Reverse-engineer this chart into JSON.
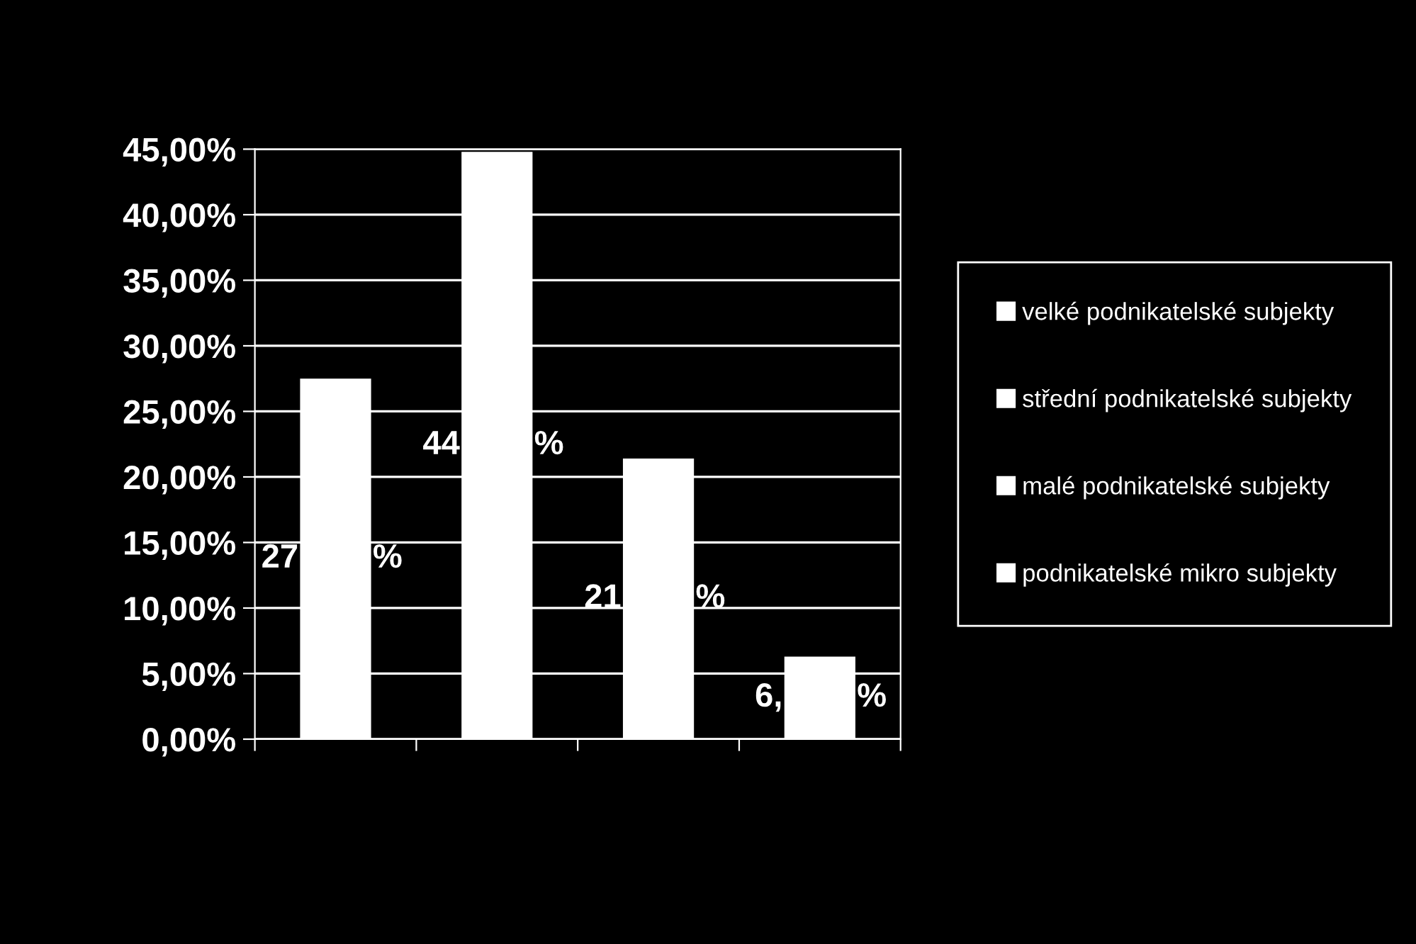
{
  "chart_data": {
    "type": "bar",
    "categories": [
      null,
      null,
      null,
      null
    ],
    "series": [
      {
        "name": "velké podnikatelské subjekty",
        "color": "#ffffff",
        "values": [
          27.5,
          null,
          null,
          null
        ]
      },
      {
        "name": "střední podnikatelské subjekty",
        "color": "#ffffff",
        "values": [
          null,
          44.8,
          null,
          null
        ]
      },
      {
        "name": "malé podnikatelské subjekty",
        "color": "#ffffff",
        "values": [
          null,
          null,
          21.4,
          null
        ]
      },
      {
        "name": "podnikatelské mikro subjekty",
        "color": "#ffffff",
        "values": [
          null,
          null,
          null,
          6.3
        ]
      }
    ],
    "annotations": [
      "27",
      "%",
      "44",
      "%",
      "21",
      "%",
      "6,",
      "%"
    ],
    "ylim": [
      0,
      45
    ],
    "yticks": [
      {
        "value": 0,
        "label": "0,00%"
      },
      {
        "value": 5,
        "label": "5,00%"
      },
      {
        "value": 10,
        "label": "10,00%"
      },
      {
        "value": 15,
        "label": "15,00%"
      },
      {
        "value": 20,
        "label": "20,00%"
      },
      {
        "value": 25,
        "label": "25,00%"
      },
      {
        "value": 30,
        "label": "30,00%"
      },
      {
        "value": 35,
        "label": "35,00%"
      },
      {
        "value": 40,
        "label": "40,00%"
      },
      {
        "value": 45,
        "label": "45,00%"
      }
    ],
    "grid": "y",
    "legend": "right"
  }
}
